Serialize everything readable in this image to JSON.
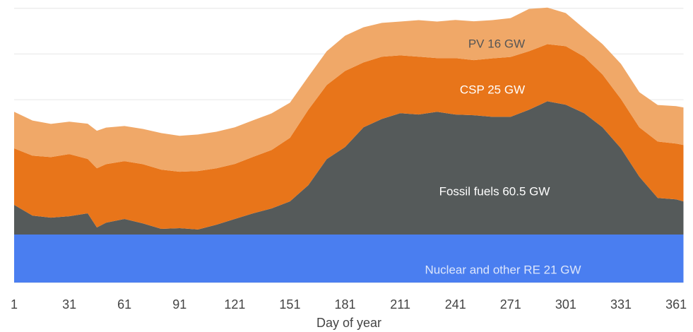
{
  "chart_data": {
    "type": "stacked_area",
    "xlabel": "Day of year",
    "x": [
      1,
      11,
      21,
      31,
      41,
      46,
      51,
      61,
      71,
      81,
      91,
      101,
      111,
      121,
      131,
      141,
      151,
      161,
      171,
      181,
      191,
      201,
      211,
      221,
      231,
      241,
      251,
      261,
      271,
      281,
      291,
      301,
      311,
      321,
      331,
      341,
      351,
      361,
      365
    ],
    "xlim": [
      1,
      365
    ],
    "xticks": [
      1,
      31,
      61,
      91,
      121,
      151,
      181,
      211,
      241,
      271,
      301,
      331,
      361
    ],
    "ylim": [
      0,
      123
    ],
    "yticks": [
      0,
      20,
      40,
      60,
      80,
      100,
      120
    ],
    "show_ytick_labels": false,
    "grid": true,
    "series": [
      {
        "name": "Nuclear and other RE 21 GW",
        "color": "#4a7ef0",
        "label_color": "#dde6fb",
        "values": [
          21,
          21,
          21,
          21,
          21,
          21,
          21,
          21,
          21,
          21,
          21,
          21,
          21,
          21,
          21,
          21,
          21,
          21,
          21,
          21,
          21,
          21,
          21,
          21,
          21,
          21,
          21,
          21,
          21,
          21,
          21,
          21,
          21,
          21,
          21,
          21,
          21,
          21,
          21
        ]
      },
      {
        "name": "Fossil fuels 60.5 GW",
        "color": "#555a5a",
        "label_color": "#ffffff",
        "values": [
          13.0,
          8.3,
          7.4,
          8.0,
          9.3,
          3.1,
          5.2,
          6.8,
          4.9,
          2.5,
          2.8,
          2.2,
          4.3,
          6.8,
          9.3,
          11.4,
          14.5,
          21.6,
          33.0,
          38.3,
          46.9,
          50.6,
          53.1,
          52.5,
          53.7,
          52.5,
          52.2,
          51.5,
          51.5,
          54.6,
          58.3,
          56.8,
          53.1,
          46.9,
          37.7,
          25.3,
          16.0,
          15.4,
          14.5
        ]
      },
      {
        "name": "CSP 25 GW",
        "color": "#e8751a",
        "label_color": "#ffffff",
        "values": [
          24.7,
          26.2,
          26.5,
          27.2,
          23.8,
          25.9,
          25.6,
          25.3,
          25.9,
          25.9,
          24.7,
          25.6,
          24.7,
          24.1,
          24.7,
          25.6,
          27.8,
          33.0,
          32.4,
          33.3,
          28.4,
          27.2,
          25.3,
          25.3,
          23.5,
          24.7,
          24.1,
          25.6,
          26.2,
          25.6,
          25.0,
          25.6,
          24.7,
          23.1,
          21.6,
          21.6,
          24.7,
          24.4,
          24.7
        ]
      },
      {
        "name": "PV 16 GW",
        "color": "#f0a868",
        "label_color": "#555555",
        "values": [
          16.0,
          15.4,
          14.5,
          14.2,
          15.4,
          16.4,
          16.0,
          15.4,
          15.4,
          16.0,
          15.7,
          16.0,
          16.0,
          16.0,
          16.0,
          16.0,
          15.4,
          14.5,
          14.8,
          15.4,
          15.4,
          14.8,
          14.8,
          16.0,
          16.0,
          16.7,
          17.0,
          16.7,
          17.0,
          18.5,
          16.0,
          14.5,
          12.3,
          13.3,
          15.4,
          15.4,
          16.0,
          16.4,
          16.4
        ]
      }
    ]
  }
}
